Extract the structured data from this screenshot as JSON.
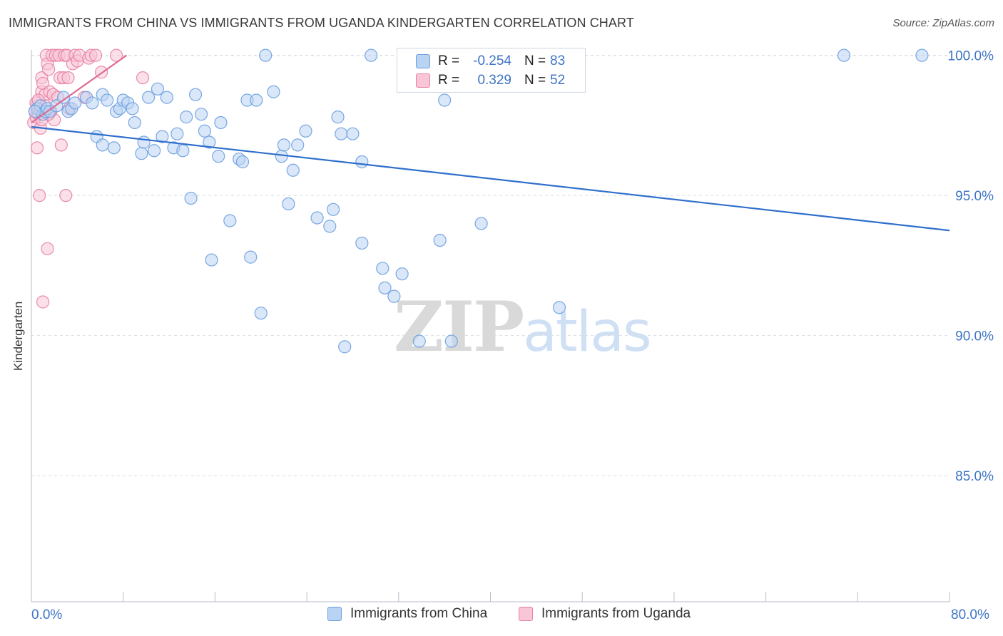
{
  "header": {
    "title": "IMMIGRANTS FROM CHINA VS IMMIGRANTS FROM UGANDA KINDERGARTEN CORRELATION CHART",
    "source": "Source: ZipAtlas.com"
  },
  "watermark": {
    "zip": "ZIP",
    "atlas": "atlas"
  },
  "stats": {
    "china": {
      "r_label": "R =",
      "r_value": "-0.254",
      "n_label": "N =",
      "n_value": "83"
    },
    "uganda": {
      "r_label": "R =",
      "r_value": "0.329",
      "n_label": "N =",
      "n_value": "52"
    }
  },
  "legend": {
    "china": "Immigrants from China",
    "uganda": "Immigrants from Uganda"
  },
  "axes": {
    "ylabel": "Kindergarten",
    "x_min_label": "0.0%",
    "x_max_label": "80.0%",
    "y_ticks": [
      "100.0%",
      "95.0%",
      "90.0%",
      "85.0%"
    ]
  },
  "colors": {
    "china": "#6b9fe0",
    "china_fill": "#b9d3f3",
    "china_line": "#2f6fcc",
    "uganda": "#e87fa3",
    "uganda_fill": "#f8c6d7",
    "uganda_line": "#e06a93",
    "axis_label": "#3d74c4",
    "grid": "#d8dde5"
  },
  "chart_data": {
    "type": "scatter",
    "xlim": [
      0,
      80
    ],
    "ylim": [
      80.5,
      100.5
    ],
    "x_unit": "%",
    "y_unit": "%",
    "grid": true,
    "legend_position": "bottom",
    "series": [
      {
        "name": "Immigrants from China",
        "trend": {
          "x": [
            0,
            80
          ],
          "y": [
            97.45,
            93.75
          ]
        },
        "points": [
          [
            0.5,
            98.1
          ],
          [
            0.8,
            98.2
          ],
          [
            1.0,
            97.9
          ],
          [
            1.2,
            98.0
          ],
          [
            1.4,
            98.1
          ],
          [
            1.6,
            98.0
          ],
          [
            2.2,
            98.2
          ],
          [
            2.8,
            98.5
          ],
          [
            3.2,
            98.0
          ],
          [
            3.5,
            98.1
          ],
          [
            3.8,
            98.3
          ],
          [
            4.8,
            98.5
          ],
          [
            5.3,
            98.3
          ],
          [
            5.7,
            97.1
          ],
          [
            6.2,
            96.8
          ],
          [
            6.2,
            98.6
          ],
          [
            6.6,
            98.4
          ],
          [
            7.2,
            96.7
          ],
          [
            7.4,
            98.0
          ],
          [
            7.7,
            98.1
          ],
          [
            8.0,
            98.4
          ],
          [
            8.4,
            98.3
          ],
          [
            8.8,
            98.1
          ],
          [
            9.0,
            97.6
          ],
          [
            9.6,
            96.5
          ],
          [
            9.8,
            96.9
          ],
          [
            10.2,
            98.5
          ],
          [
            10.7,
            96.6
          ],
          [
            11.0,
            98.8
          ],
          [
            11.4,
            97.1
          ],
          [
            11.8,
            98.5
          ],
          [
            12.4,
            96.7
          ],
          [
            12.7,
            97.2
          ],
          [
            13.2,
            96.6
          ],
          [
            13.5,
            97.8
          ],
          [
            13.9,
            94.9
          ],
          [
            14.3,
            98.6
          ],
          [
            14.8,
            97.9
          ],
          [
            15.1,
            97.3
          ],
          [
            15.5,
            96.9
          ],
          [
            15.7,
            92.7
          ],
          [
            16.3,
            96.4
          ],
          [
            16.5,
            97.6
          ],
          [
            17.3,
            94.1
          ],
          [
            18.1,
            96.3
          ],
          [
            18.4,
            96.2
          ],
          [
            18.8,
            98.4
          ],
          [
            19.1,
            92.8
          ],
          [
            19.6,
            98.4
          ],
          [
            20.0,
            90.8
          ],
          [
            20.4,
            100.0
          ],
          [
            21.1,
            98.7
          ],
          [
            21.8,
            96.4
          ],
          [
            22.0,
            96.8
          ],
          [
            22.4,
            94.7
          ],
          [
            22.8,
            95.9
          ],
          [
            23.2,
            96.8
          ],
          [
            23.9,
            97.3
          ],
          [
            24.9,
            94.2
          ],
          [
            26.0,
            93.9
          ],
          [
            26.3,
            94.5
          ],
          [
            26.7,
            97.8
          ],
          [
            27.0,
            97.2
          ],
          [
            27.3,
            89.6
          ],
          [
            28.0,
            97.2
          ],
          [
            28.8,
            96.2
          ],
          [
            28.8,
            93.3
          ],
          [
            29.6,
            100.0
          ],
          [
            30.6,
            92.4
          ],
          [
            30.8,
            91.7
          ],
          [
            31.6,
            91.4
          ],
          [
            32.3,
            92.2
          ],
          [
            32.7,
            100.0
          ],
          [
            33.8,
            89.8
          ],
          [
            35.6,
            93.4
          ],
          [
            36.0,
            98.4
          ],
          [
            36.6,
            89.8
          ],
          [
            39.2,
            94.0
          ],
          [
            40.2,
            100.0
          ],
          [
            46.0,
            91.0
          ],
          [
            70.8,
            100.0
          ],
          [
            77.6,
            100.0
          ],
          [
            0.3,
            98.0
          ]
        ]
      },
      {
        "name": "Immigrants from Uganda",
        "trend": {
          "x": [
            0,
            8.3
          ],
          "y": [
            97.6,
            100.0
          ]
        },
        "points": [
          [
            0.2,
            97.6
          ],
          [
            0.3,
            98.0
          ],
          [
            0.4,
            97.8
          ],
          [
            0.5,
            98.2
          ],
          [
            0.5,
            96.7
          ],
          [
            0.6,
            97.9
          ],
          [
            0.7,
            98.1
          ],
          [
            0.7,
            95.0
          ],
          [
            0.8,
            98.0
          ],
          [
            0.8,
            97.4
          ],
          [
            0.9,
            98.7
          ],
          [
            0.9,
            99.2
          ],
          [
            1.0,
            99.0
          ],
          [
            1.0,
            91.2
          ],
          [
            1.1,
            97.9
          ],
          [
            1.2,
            98.6
          ],
          [
            1.3,
            100.0
          ],
          [
            1.4,
            99.7
          ],
          [
            1.4,
            93.1
          ],
          [
            1.5,
            99.5
          ],
          [
            1.6,
            98.7
          ],
          [
            1.7,
            98.0
          ],
          [
            1.8,
            100.0
          ],
          [
            1.9,
            98.6
          ],
          [
            2.0,
            97.7
          ],
          [
            2.1,
            100.0
          ],
          [
            2.3,
            98.5
          ],
          [
            2.4,
            100.0
          ],
          [
            2.5,
            99.2
          ],
          [
            2.6,
            96.8
          ],
          [
            2.8,
            99.2
          ],
          [
            2.9,
            100.0
          ],
          [
            3.0,
            95.0
          ],
          [
            3.1,
            100.0
          ],
          [
            3.2,
            99.2
          ],
          [
            3.3,
            98.1
          ],
          [
            3.6,
            99.7
          ],
          [
            3.8,
            100.0
          ],
          [
            4.0,
            99.8
          ],
          [
            4.2,
            100.0
          ],
          [
            4.6,
            98.5
          ],
          [
            5.0,
            99.9
          ],
          [
            5.2,
            100.0
          ],
          [
            5.6,
            100.0
          ],
          [
            6.1,
            99.4
          ],
          [
            7.4,
            100.0
          ],
          [
            9.7,
            99.2
          ],
          [
            0.4,
            98.3
          ],
          [
            0.6,
            98.4
          ],
          [
            0.9,
            97.7
          ],
          [
            1.2,
            98.2
          ],
          [
            1.5,
            97.9
          ]
        ]
      }
    ]
  }
}
